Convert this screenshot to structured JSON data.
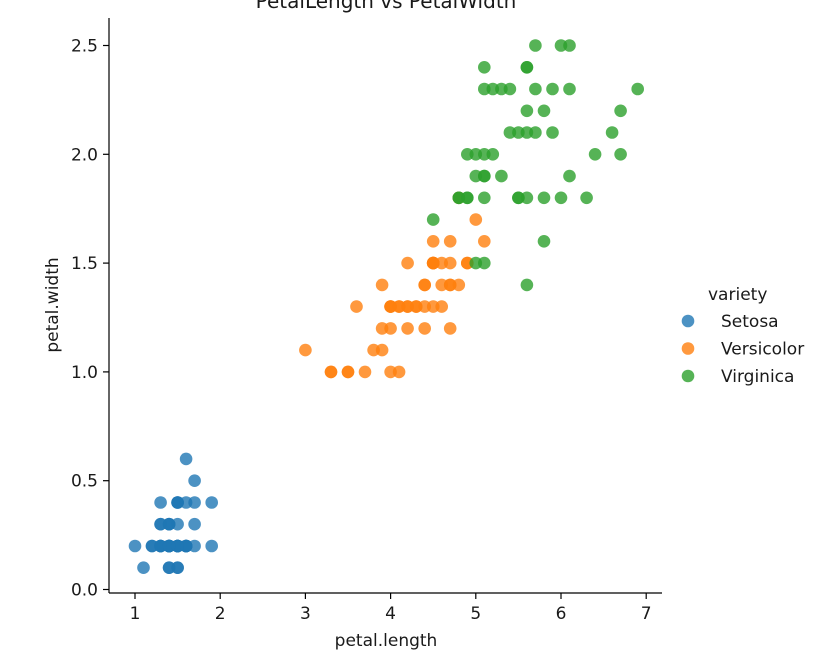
{
  "chart_data": {
    "type": "scatter",
    "title": "PetalLength vs PetalWidth",
    "xlabel": "petal.length",
    "ylabel": "petal.width",
    "xlim": [
      0.7,
      7.2
    ],
    "ylim": [
      -0.03,
      2.62
    ],
    "xticks": [
      1,
      2,
      3,
      4,
      5,
      6,
      7
    ],
    "xtick_labels": [
      "1",
      "2",
      "3",
      "4",
      "5",
      "6",
      "7"
    ],
    "yticks": [
      0.0,
      0.5,
      1.0,
      1.5,
      2.0,
      2.5
    ],
    "ytick_labels": [
      "0.0",
      "0.5",
      "1.0",
      "1.5",
      "2.0",
      "2.5"
    ],
    "grid": false,
    "legend": {
      "title": "variety",
      "position": "right"
    },
    "series": [
      {
        "name": "Setosa",
        "color": "#1f77b4",
        "x": [
          1.4,
          1.4,
          1.3,
          1.5,
          1.4,
          1.7,
          1.4,
          1.5,
          1.4,
          1.5,
          1.5,
          1.6,
          1.4,
          1.1,
          1.2,
          1.5,
          1.3,
          1.4,
          1.7,
          1.5,
          1.7,
          1.5,
          1.0,
          1.7,
          1.9,
          1.6,
          1.6,
          1.5,
          1.4,
          1.6,
          1.6,
          1.5,
          1.5,
          1.4,
          1.5,
          1.2,
          1.3,
          1.4,
          1.3,
          1.5,
          1.3,
          1.3,
          1.3,
          1.6,
          1.9,
          1.4,
          1.6,
          1.4,
          1.5,
          1.4
        ],
        "y": [
          0.2,
          0.2,
          0.2,
          0.2,
          0.2,
          0.4,
          0.3,
          0.2,
          0.2,
          0.1,
          0.2,
          0.2,
          0.1,
          0.1,
          0.2,
          0.4,
          0.4,
          0.3,
          0.3,
          0.3,
          0.2,
          0.4,
          0.2,
          0.5,
          0.2,
          0.2,
          0.4,
          0.2,
          0.2,
          0.2,
          0.2,
          0.4,
          0.1,
          0.2,
          0.2,
          0.2,
          0.2,
          0.1,
          0.2,
          0.2,
          0.3,
          0.3,
          0.2,
          0.6,
          0.4,
          0.3,
          0.2,
          0.2,
          0.2,
          0.2
        ]
      },
      {
        "name": "Versicolor",
        "color": "#ff7f0e",
        "x": [
          4.7,
          4.5,
          4.9,
          4.0,
          4.6,
          4.5,
          4.7,
          3.3,
          4.6,
          3.9,
          3.5,
          4.2,
          4.0,
          4.7,
          3.6,
          4.4,
          4.5,
          4.1,
          4.5,
          3.9,
          4.8,
          4.0,
          4.9,
          4.7,
          4.3,
          4.4,
          4.8,
          5.0,
          4.5,
          3.5,
          3.8,
          3.7,
          3.9,
          5.1,
          4.5,
          4.5,
          4.7,
          4.4,
          4.1,
          4.0,
          4.4,
          4.6,
          4.0,
          3.3,
          4.2,
          4.2,
          4.2,
          4.3,
          3.0,
          4.1
        ],
        "y": [
          1.4,
          1.5,
          1.5,
          1.3,
          1.5,
          1.3,
          1.6,
          1.0,
          1.3,
          1.4,
          1.0,
          1.5,
          1.0,
          1.4,
          1.3,
          1.4,
          1.5,
          1.0,
          1.5,
          1.1,
          1.8,
          1.3,
          1.5,
          1.2,
          1.3,
          1.4,
          1.4,
          1.7,
          1.5,
          1.0,
          1.1,
          1.0,
          1.2,
          1.6,
          1.5,
          1.6,
          1.5,
          1.3,
          1.3,
          1.3,
          1.2,
          1.4,
          1.2,
          1.0,
          1.3,
          1.2,
          1.3,
          1.3,
          1.1,
          1.3
        ]
      },
      {
        "name": "Virginica",
        "color": "#2ca02c",
        "x": [
          6.0,
          5.1,
          5.9,
          5.6,
          5.8,
          6.6,
          4.5,
          6.3,
          5.8,
          6.1,
          5.1,
          5.3,
          5.5,
          5.0,
          5.1,
          5.3,
          5.5,
          6.7,
          6.9,
          5.0,
          5.7,
          4.9,
          6.7,
          4.9,
          5.7,
          6.0,
          4.8,
          4.9,
          5.6,
          5.8,
          6.1,
          6.4,
          5.6,
          5.1,
          5.6,
          6.1,
          5.6,
          5.5,
          4.8,
          5.4,
          5.6,
          5.1,
          5.1,
          5.9,
          5.7,
          5.2,
          5.0,
          5.2,
          5.4,
          5.1
        ],
        "y": [
          2.5,
          1.9,
          2.1,
          1.8,
          2.2,
          2.1,
          1.7,
          1.8,
          1.8,
          2.5,
          2.0,
          1.9,
          2.1,
          2.0,
          2.4,
          2.3,
          1.8,
          2.2,
          2.3,
          1.5,
          2.3,
          2.0,
          2.0,
          1.8,
          2.1,
          1.8,
          1.8,
          1.8,
          2.1,
          1.6,
          1.9,
          2.0,
          2.2,
          1.5,
          1.4,
          2.3,
          2.4,
          1.8,
          1.8,
          2.1,
          2.4,
          2.3,
          1.9,
          2.3,
          2.5,
          2.3,
          1.9,
          2.0,
          2.3,
          1.8
        ]
      }
    ]
  }
}
